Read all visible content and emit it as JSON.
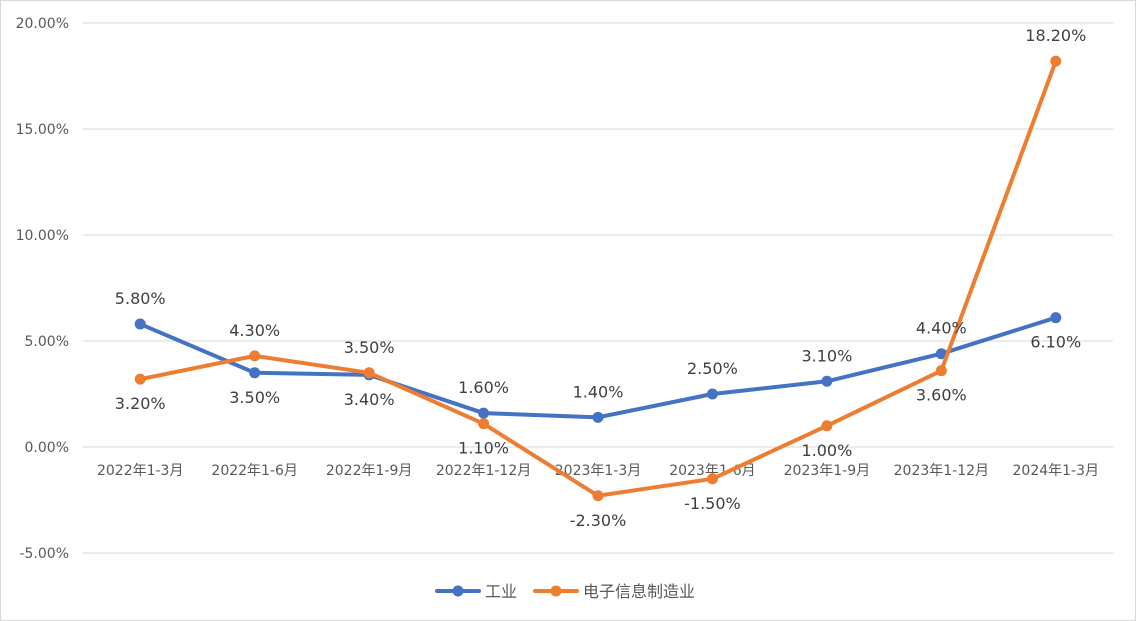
{
  "chart_data": {
    "type": "line",
    "categories": [
      "2022年1-3月",
      "2022年1-6月",
      "2022年1-9月",
      "2022年1-12月",
      "2023年1-3月",
      "2023年1-6月",
      "2023年1-9月",
      "2023年1-12月",
      "2024年1-3月"
    ],
    "series": [
      {
        "name": "工业",
        "color": "#4472c4",
        "values": [
          5.8,
          3.5,
          3.4,
          1.6,
          1.4,
          2.5,
          3.1,
          4.4,
          6.1
        ],
        "labels": [
          "5.80%",
          "3.50%",
          "3.40%",
          "1.60%",
          "1.40%",
          "2.50%",
          "3.10%",
          "4.40%",
          "6.10%"
        ]
      },
      {
        "name": "电子信息制造业",
        "color": "#ed7d31",
        "values": [
          3.2,
          4.3,
          3.5,
          1.1,
          -2.3,
          -1.5,
          1.0,
          3.6,
          18.2
        ],
        "labels": [
          "3.20%",
          "4.30%",
          "3.50%",
          "1.10%",
          "-2.30%",
          "-1.50%",
          "1.00%",
          "3.60%",
          "18.20%"
        ]
      }
    ],
    "y_ticks": [
      20,
      15,
      10,
      5,
      0,
      -5
    ],
    "y_tick_labels": [
      "20.00%",
      "15.00%",
      "10.00%",
      "5.00%",
      "0.00%",
      "-5.00%"
    ],
    "ylim": [
      -5,
      20
    ],
    "grid": true,
    "legend_position": "bottom",
    "title": "",
    "xlabel": "",
    "ylabel": ""
  }
}
